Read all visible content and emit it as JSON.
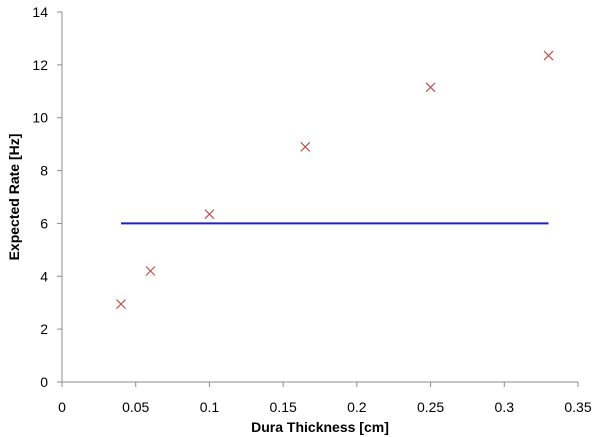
{
  "chart_data": {
    "type": "scatter",
    "title": "",
    "xlabel": "Dura Thickness [cm]",
    "ylabel": "Expected Rate [Hz]",
    "xlim": [
      0,
      0.35
    ],
    "ylim": [
      0,
      14
    ],
    "xticks": [
      "0",
      "0.05",
      "0.1",
      "0.15",
      "0.2",
      "0.25",
      "0.3",
      "0.35"
    ],
    "yticks": [
      "0",
      "2",
      "4",
      "6",
      "8",
      "10",
      "12",
      "14"
    ],
    "grid": false,
    "legend": "none",
    "series": [
      {
        "type": "scatter",
        "marker": "x",
        "color": "#c0504d",
        "x": [
          0.04,
          0.06,
          0.1,
          0.165,
          0.25,
          0.33
        ],
        "y": [
          2.95,
          4.2,
          6.35,
          8.9,
          11.15,
          12.35
        ]
      },
      {
        "type": "line",
        "color": "#1f1fd0",
        "x": [
          0.04,
          0.33
        ],
        "y": [
          6.0,
          6.0
        ]
      }
    ]
  }
}
